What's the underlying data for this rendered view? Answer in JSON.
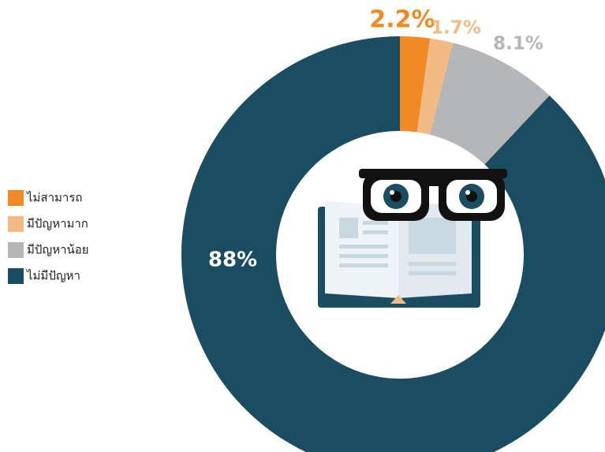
{
  "chart_data": {
    "type": "donut",
    "categories": [
      "ไม่สามารถ",
      "มีปัญหามาก",
      "มีปัญหาน้อย",
      "ไม่มีปัญหา"
    ],
    "values": [
      2.2,
      1.7,
      8.1,
      88
    ],
    "value_labels": [
      "2.2%",
      "1.7%",
      "8.1%",
      "88%"
    ],
    "colors": [
      "#f08a24",
      "#f2bb85",
      "#b4b6b8",
      "#1b4d62"
    ]
  }
}
